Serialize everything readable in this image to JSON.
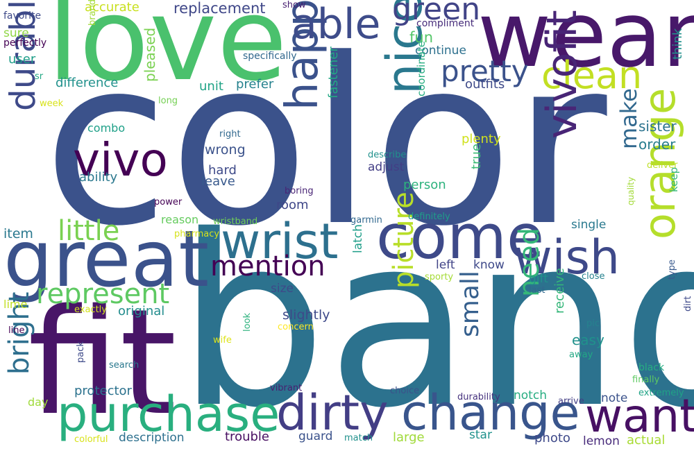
{
  "words": [
    {
      "text": "color",
      "color": "#3b528b"
    },
    {
      "text": "band",
      "color": "#2c728e"
    },
    {
      "text": "fit",
      "color": "#481567"
    },
    {
      "text": "wear",
      "color": "#48186a"
    },
    {
      "text": "love",
      "color": "#4ac16d"
    },
    {
      "text": "great",
      "color": "#3b528b"
    },
    {
      "text": "come",
      "color": "#3e4a89"
    },
    {
      "text": "purchase",
      "color": "#29af7f"
    },
    {
      "text": "dirty",
      "color": "#433e85"
    },
    {
      "text": "change",
      "color": "#39558c"
    },
    {
      "text": "want",
      "color": "#471063"
    },
    {
      "text": "wrist",
      "color": "#2d708e"
    },
    {
      "text": "wish",
      "color": "#3e4989"
    },
    {
      "text": "vivo",
      "color": "#440154"
    },
    {
      "text": "nice",
      "color": "#2a788e"
    },
    {
      "text": "happy",
      "color": "#3b528b"
    },
    {
      "text": "durable",
      "color": "#3e4a89"
    },
    {
      "text": "able",
      "color": "#3e4c8a"
    },
    {
      "text": "green",
      "color": "#414487"
    },
    {
      "text": "pretty",
      "color": "#3b528b"
    },
    {
      "text": "clean",
      "color": "#c2df23"
    },
    {
      "text": "vivofit",
      "color": "#482576"
    },
    {
      "text": "orange",
      "color": "#b5de2b"
    },
    {
      "text": "mention",
      "color": "#440154"
    },
    {
      "text": "little",
      "color": "#7ad151"
    },
    {
      "text": "represent",
      "color": "#5ec962"
    },
    {
      "text": "picture",
      "color": "#b8de29"
    },
    {
      "text": "bright",
      "color": "#2e6f8e"
    },
    {
      "text": "need",
      "color": "#35b779"
    },
    {
      "text": "small",
      "color": "#355f8d"
    },
    {
      "text": "make",
      "color": "#31688e"
    },
    {
      "text": "replacement",
      "color": "#3f4788"
    },
    {
      "text": "fun",
      "color": "#54c568"
    },
    {
      "text": "continue",
      "color": "#2d708e"
    },
    {
      "text": "outfits",
      "color": "#3e4a89"
    },
    {
      "text": "think",
      "color": "#21918c"
    },
    {
      "text": "sister",
      "color": "#2c738e"
    },
    {
      "text": "order",
      "color": "#287d8e"
    },
    {
      "text": "accurate",
      "color": "#c8e020"
    },
    {
      "text": "show",
      "color": "#482071"
    },
    {
      "text": "compliment",
      "color": "#472d7b"
    },
    {
      "text": "brand",
      "color": "#a0da39"
    },
    {
      "text": "favorite",
      "color": "#3e4a89"
    },
    {
      "text": "sure",
      "color": "#8fd744"
    },
    {
      "text": "perfectly",
      "color": "#440154"
    },
    {
      "text": "user",
      "color": "#1f9e89"
    },
    {
      "text": "specifically",
      "color": "#31688e"
    },
    {
      "text": "sr",
      "color": "#22a884"
    },
    {
      "text": "difference",
      "color": "#21918c"
    },
    {
      "text": "unit",
      "color": "#20a386"
    },
    {
      "text": "prefer",
      "color": "#26828e"
    },
    {
      "text": "pleased",
      "color": "#7ad151"
    },
    {
      "text": "week",
      "color": "#d8e219"
    },
    {
      "text": "long",
      "color": "#75d054"
    },
    {
      "text": "combo",
      "color": "#1fa088"
    },
    {
      "text": "fastener",
      "color": "#22a884"
    },
    {
      "text": "coordinate",
      "color": "#27ad81"
    },
    {
      "text": "plenty",
      "color": "#d0e11c"
    },
    {
      "text": "right",
      "color": "#31688e"
    },
    {
      "text": "wrong",
      "color": "#3b528b"
    },
    {
      "text": "describe",
      "color": "#21918c"
    },
    {
      "text": "adjust",
      "color": "#433e85"
    },
    {
      "text": "true",
      "color": "#3bbb75"
    },
    {
      "text": "hard",
      "color": "#3e4a89"
    },
    {
      "text": "leave",
      "color": "#38598c"
    },
    {
      "text": "ability",
      "color": "#2a788e"
    },
    {
      "text": "person",
      "color": "#2db27d"
    },
    {
      "text": "deliver",
      "color": "#bddf26"
    },
    {
      "text": "room",
      "color": "#3f4788"
    },
    {
      "text": "boring",
      "color": "#482475"
    },
    {
      "text": "power",
      "color": "#440154"
    },
    {
      "text": "keep",
      "color": "#35b779"
    },
    {
      "text": "quality",
      "color": "#a2da37"
    },
    {
      "text": "reason",
      "color": "#65cb5e"
    },
    {
      "text": "wristband",
      "color": "#70cf57"
    },
    {
      "text": "garmin",
      "color": "#31688e"
    },
    {
      "text": "definitely",
      "color": "#1f9e89"
    },
    {
      "text": "item",
      "color": "#2a788e"
    },
    {
      "text": "pharmacy",
      "color": "#d5e21a"
    },
    {
      "text": "single",
      "color": "#29798e"
    },
    {
      "text": "latch",
      "color": "#1f9e89"
    },
    {
      "text": "left",
      "color": "#414487"
    },
    {
      "text": "know",
      "color": "#3e4989"
    },
    {
      "text": "gift",
      "color": "#21918c"
    },
    {
      "text": "sporty",
      "color": "#a5db36"
    },
    {
      "text": "close",
      "color": "#26828e"
    },
    {
      "text": "type",
      "color": "#38598c"
    },
    {
      "text": "last",
      "color": "#31688e"
    },
    {
      "text": "lime",
      "color": "#c2df23"
    },
    {
      "text": "size",
      "color": "#3e4989"
    },
    {
      "text": "exactly",
      "color": "#d2e21b"
    },
    {
      "text": "original",
      "color": "#228c8d"
    },
    {
      "text": "slightly",
      "color": "#3e4989"
    },
    {
      "text": "receive",
      "color": "#34b679"
    },
    {
      "text": "easy",
      "color": "#20928c"
    },
    {
      "text": "dirt",
      "color": "#3e4989"
    },
    {
      "text": "line",
      "color": "#440154"
    },
    {
      "text": "wife",
      "color": "#dde318"
    },
    {
      "text": "look",
      "color": "#2db27d"
    },
    {
      "text": "concern",
      "color": "#fde725"
    },
    {
      "text": "pic",
      "color": "#26828e"
    },
    {
      "text": "away",
      "color": "#22a884"
    },
    {
      "text": "black",
      "color": "#27ad81"
    },
    {
      "text": "finally",
      "color": "#5ec962"
    },
    {
      "text": "pack",
      "color": "#3e4a89"
    },
    {
      "text": "search",
      "color": "#2a788e"
    },
    {
      "text": "day",
      "color": "#9fda3a"
    },
    {
      "text": "protector",
      "color": "#2c728e"
    },
    {
      "text": "vibrant",
      "color": "#481f70"
    },
    {
      "text": "choice",
      "color": "#3b528b"
    },
    {
      "text": "durability",
      "color": "#46327e"
    },
    {
      "text": "notch",
      "color": "#27ad81"
    },
    {
      "text": "arrive",
      "color": "#433e85"
    },
    {
      "text": "note",
      "color": "#3b528b"
    },
    {
      "text": "extremely",
      "color": "#20a386"
    },
    {
      "text": "description",
      "color": "#2d708e"
    },
    {
      "text": "colorful",
      "color": "#d8e219"
    },
    {
      "text": "trouble",
      "color": "#470e61"
    },
    {
      "text": "guard",
      "color": "#3b528b"
    },
    {
      "text": "match",
      "color": "#21918c"
    },
    {
      "text": "large",
      "color": "#a0da39"
    },
    {
      "text": "star",
      "color": "#20928c"
    },
    {
      "text": "photo",
      "color": "#3e4989"
    },
    {
      "text": "lemon",
      "color": "#472a7a"
    },
    {
      "text": "actual",
      "color": "#a8db34"
    }
  ]
}
